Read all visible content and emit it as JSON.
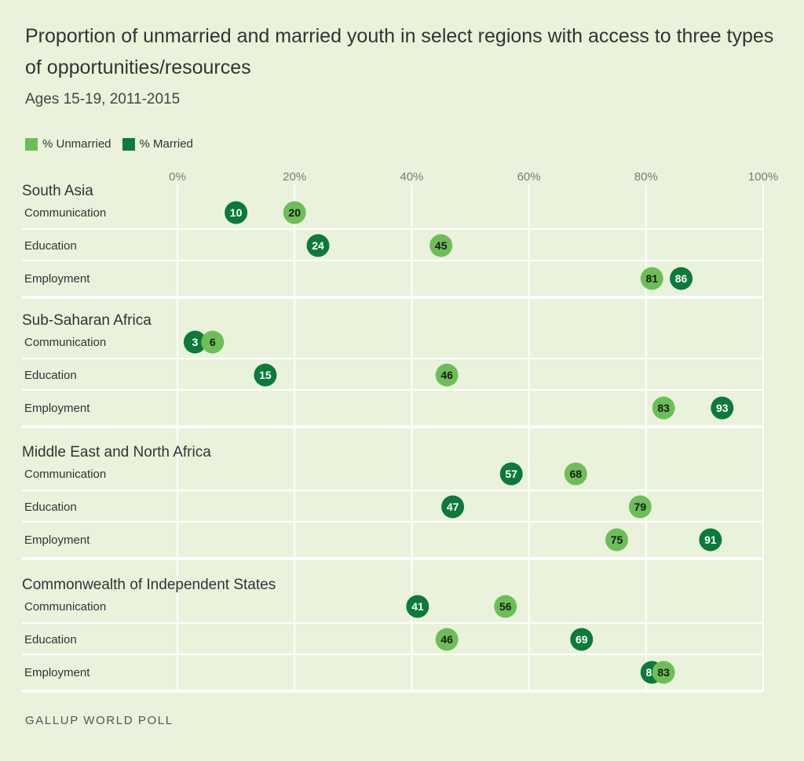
{
  "header": {
    "title": "Proportion of unmarried and married youth in select regions with access to three types of opportunities/resources",
    "subtitle": "Ages 15-19, 2011-2015"
  },
  "footer": {
    "source": "GALLUP WORLD POLL"
  },
  "chart_data": {
    "type": "scatter",
    "title": "Proportion of unmarried and married youth in select regions with access to three types of opportunities/resources",
    "subtitle": "Ages 15-19, 2011-2015",
    "xlim": [
      0,
      100
    ],
    "x_ticks": [
      "0%",
      "20%",
      "40%",
      "60%",
      "80%",
      "100%"
    ],
    "x_tick_values": [
      0,
      20,
      40,
      60,
      80,
      100
    ],
    "grid": true,
    "legend_position": "top-left",
    "series": [
      {
        "name": "% Unmarried",
        "color": "#6cbf57",
        "label_color": "#1a1a1a"
      },
      {
        "name": "% Married",
        "color": "#0b7a3a",
        "label_color": "#ffffff"
      }
    ],
    "groups": [
      {
        "region": "South Asia",
        "rows": [
          {
            "label": "Communication",
            "unmarried": 20,
            "married": 10
          },
          {
            "label": "Education",
            "unmarried": 45,
            "married": 24
          },
          {
            "label": "Employment",
            "unmarried": 81,
            "married": 86
          }
        ]
      },
      {
        "region": "Sub-Saharan Africa",
        "rows": [
          {
            "label": "Communication",
            "unmarried": 6,
            "married": 3
          },
          {
            "label": "Education",
            "unmarried": 46,
            "married": 15
          },
          {
            "label": "Employment",
            "unmarried": 83,
            "married": 93
          }
        ]
      },
      {
        "region": "Middle East and North Africa",
        "rows": [
          {
            "label": "Communication",
            "unmarried": 68,
            "married": 57
          },
          {
            "label": "Education",
            "unmarried": 79,
            "married": 47
          },
          {
            "label": "Employment",
            "unmarried": 75,
            "married": 91
          }
        ]
      },
      {
        "region": "Commonwealth of Independent States",
        "rows": [
          {
            "label": "Communication",
            "unmarried": 56,
            "married": 41
          },
          {
            "label": "Education",
            "unmarried": 46,
            "married": 69
          },
          {
            "label": "Employment",
            "unmarried": 83,
            "married": 81
          }
        ]
      }
    ]
  }
}
